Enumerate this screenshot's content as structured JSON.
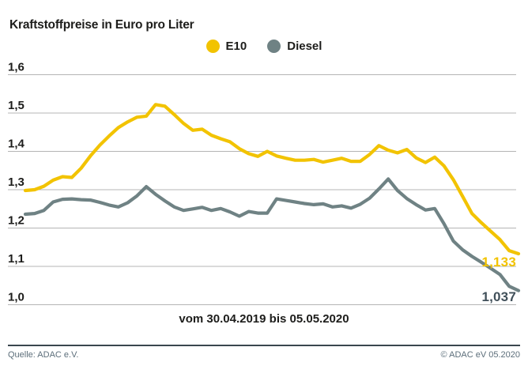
{
  "title": "Kraftstoffpreise in Euro pro Liter",
  "caption": "vom 30.04.2019 bis 05.05.2020",
  "footer": {
    "source": "Quelle: ADAC e.V.",
    "copyright": "© ADAC eV 05.2020"
  },
  "colors": {
    "e10": "#f2c300",
    "diesel": "#6f8284",
    "e10_label": "#f2c300",
    "diesel_label": "#41505a",
    "grid": "#b4b4b4",
    "text": "#1d1d1b",
    "footer_text": "#5c6e7a",
    "footer_rule": "#3a464e"
  },
  "chart_data": {
    "type": "line",
    "title": "Kraftstoffpreise in Euro pro Liter",
    "xlabel": "vom 30.04.2019 bis 05.05.2020",
    "ylabel": "Euro pro Liter",
    "ylim": [
      1.0,
      1.6
    ],
    "grid": true,
    "legend_position": "top-center",
    "x_unit": "weeks from 30.04.2019 to 05.05.2020",
    "y_ticks": [
      {
        "value": 1.6,
        "label": "1,6"
      },
      {
        "value": 1.5,
        "label": "1,5"
      },
      {
        "value": 1.4,
        "label": "1,4"
      },
      {
        "value": 1.3,
        "label": "1,3"
      },
      {
        "value": 1.2,
        "label": "1,2"
      },
      {
        "value": 1.1,
        "label": "1,1"
      },
      {
        "value": 1.0,
        "label": "1,0"
      }
    ],
    "series": [
      {
        "name": "E10",
        "color": "#f2c300",
        "last_value_label": "1,133",
        "values": [
          1.298,
          1.3,
          1.309,
          1.325,
          1.334,
          1.332,
          1.356,
          1.388,
          1.416,
          1.44,
          1.462,
          1.477,
          1.489,
          1.492,
          1.522,
          1.518,
          1.496,
          1.473,
          1.455,
          1.458,
          1.442,
          1.433,
          1.425,
          1.407,
          1.394,
          1.387,
          1.4,
          1.388,
          1.382,
          1.377,
          1.377,
          1.379,
          1.372,
          1.377,
          1.382,
          1.374,
          1.374,
          1.392,
          1.415,
          1.403,
          1.396,
          1.405,
          1.383,
          1.371,
          1.385,
          1.362,
          1.326,
          1.282,
          1.238,
          1.214,
          1.192,
          1.17,
          1.141,
          1.133
        ]
      },
      {
        "name": "Diesel",
        "color": "#6f8284",
        "last_value_label": "1,037",
        "values": [
          1.236,
          1.238,
          1.246,
          1.268,
          1.275,
          1.276,
          1.274,
          1.273,
          1.267,
          1.26,
          1.255,
          1.266,
          1.284,
          1.308,
          1.288,
          1.271,
          1.255,
          1.246,
          1.25,
          1.254,
          1.246,
          1.251,
          1.242,
          1.231,
          1.243,
          1.239,
          1.239,
          1.276,
          1.272,
          1.268,
          1.264,
          1.261,
          1.263,
          1.255,
          1.258,
          1.252,
          1.262,
          1.278,
          1.302,
          1.328,
          1.298,
          1.277,
          1.261,
          1.247,
          1.251,
          1.211,
          1.166,
          1.143,
          1.126,
          1.111,
          1.095,
          1.079,
          1.048,
          1.037
        ]
      }
    ]
  }
}
